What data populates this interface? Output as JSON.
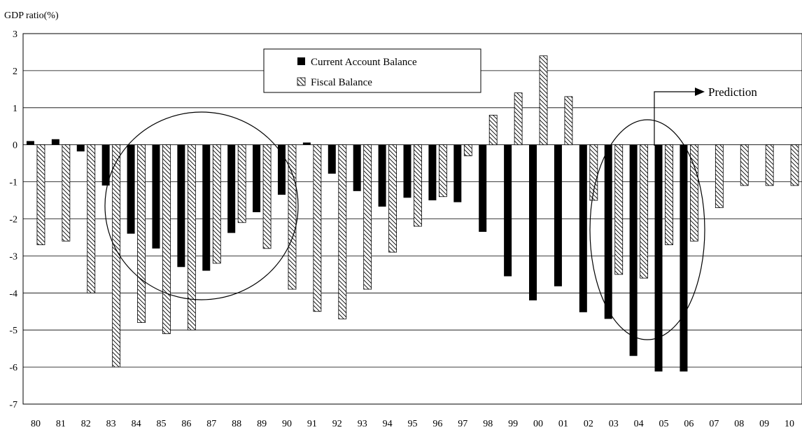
{
  "chart_data": {
    "type": "bar",
    "ylabel": "GDP   ratio(%)",
    "ylim": [
      -7,
      3
    ],
    "yticks": [
      3,
      2,
      1,
      0,
      -1,
      -2,
      -3,
      -4,
      -5,
      -6,
      -7
    ],
    "grid": true,
    "legend_position": "top-center",
    "categories": [
      "80",
      "81",
      "82",
      "83",
      "84",
      "85",
      "86",
      "87",
      "88",
      "89",
      "90",
      "91",
      "92",
      "93",
      "94",
      "95",
      "96",
      "97",
      "98",
      "99",
      "00",
      "01",
      "02",
      "03",
      "04",
      "05",
      "06",
      "07",
      "08",
      "09",
      "10"
    ],
    "series": [
      {
        "name": "Current Account Balance",
        "pattern": "solid",
        "color": "#000000",
        "values": [
          0.1,
          0.15,
          -0.18,
          -1.1,
          -2.4,
          -2.8,
          -3.3,
          -3.4,
          -2.38,
          -1.82,
          -1.35,
          0.06,
          -0.78,
          -1.25,
          -1.67,
          -1.43,
          -1.5,
          -1.55,
          -2.35,
          -3.55,
          -4.2,
          -3.82,
          -4.52,
          -4.7,
          -5.7,
          -6.12,
          -6.12,
          null,
          null,
          null,
          null
        ]
      },
      {
        "name": "Fiscal Balance",
        "pattern": "hatched",
        "color": "#000000",
        "values": [
          -2.7,
          -2.6,
          -4.0,
          -6.0,
          -4.8,
          -5.1,
          -5.0,
          -3.2,
          -2.1,
          -2.8,
          -3.9,
          -4.5,
          -4.7,
          -3.9,
          -2.9,
          -2.2,
          -1.4,
          -0.3,
          0.8,
          1.4,
          2.4,
          1.3,
          -1.5,
          -3.5,
          -3.6,
          -2.7,
          -2.6,
          -1.7,
          -1.1,
          -1.1,
          -1.1
        ]
      }
    ],
    "annotations": [
      {
        "type": "arrow",
        "label": "Prediction",
        "from_category": "04"
      }
    ],
    "highlight_circles": [
      {
        "around": [
          "83",
          "90"
        ]
      },
      {
        "around": [
          "02",
          "06"
        ]
      }
    ]
  }
}
